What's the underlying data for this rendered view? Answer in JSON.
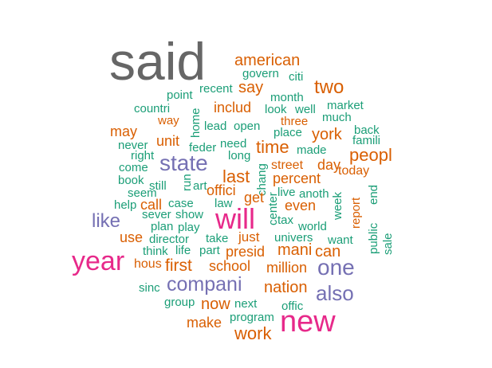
{
  "chart_data": {
    "type": "wordcloud",
    "palette": {
      "dark": "#666666",
      "orange": "#D95F02",
      "teal": "#1B9E77",
      "purple": "#7570B3",
      "magenta": "#E7298A"
    },
    "words": [
      {
        "text": "said",
        "color": "dark"
      },
      {
        "text": "american",
        "color": "orange"
      },
      {
        "text": "govern",
        "color": "teal"
      },
      {
        "text": "citi",
        "color": "teal"
      },
      {
        "text": "say",
        "color": "orange"
      },
      {
        "text": "recent",
        "color": "teal"
      },
      {
        "text": "two",
        "color": "orange"
      },
      {
        "text": "point",
        "color": "teal"
      },
      {
        "text": "month",
        "color": "teal"
      },
      {
        "text": "countri",
        "color": "teal"
      },
      {
        "text": "includ",
        "color": "orange"
      },
      {
        "text": "look",
        "color": "teal"
      },
      {
        "text": "well",
        "color": "teal"
      },
      {
        "text": "market",
        "color": "teal"
      },
      {
        "text": "much",
        "color": "teal"
      },
      {
        "text": "way",
        "color": "orange"
      },
      {
        "text": "home",
        "color": "teal"
      },
      {
        "text": "lead",
        "color": "teal"
      },
      {
        "text": "open",
        "color": "teal"
      },
      {
        "text": "three",
        "color": "orange"
      },
      {
        "text": "place",
        "color": "teal"
      },
      {
        "text": "back",
        "color": "teal"
      },
      {
        "text": "may",
        "color": "orange"
      },
      {
        "text": "york",
        "color": "orange"
      },
      {
        "text": "famili",
        "color": "teal"
      },
      {
        "text": "never",
        "color": "teal"
      },
      {
        "text": "unit",
        "color": "orange"
      },
      {
        "text": "feder",
        "color": "teal"
      },
      {
        "text": "need",
        "color": "teal"
      },
      {
        "text": "time",
        "color": "orange"
      },
      {
        "text": "made",
        "color": "teal"
      },
      {
        "text": "right",
        "color": "teal"
      },
      {
        "text": "long",
        "color": "teal"
      },
      {
        "text": "peopl",
        "color": "orange"
      },
      {
        "text": "state",
        "color": "purple"
      },
      {
        "text": "come",
        "color": "teal"
      },
      {
        "text": "street",
        "color": "orange"
      },
      {
        "text": "day",
        "color": "orange"
      },
      {
        "text": "today",
        "color": "orange"
      },
      {
        "text": "book",
        "color": "teal"
      },
      {
        "text": "last",
        "color": "orange"
      },
      {
        "text": "chang",
        "color": "teal"
      },
      {
        "text": "percent",
        "color": "orange"
      },
      {
        "text": "still",
        "color": "teal"
      },
      {
        "text": "run",
        "color": "teal"
      },
      {
        "text": "art",
        "color": "teal"
      },
      {
        "text": "offici",
        "color": "orange"
      },
      {
        "text": "live",
        "color": "teal"
      },
      {
        "text": "anoth",
        "color": "teal"
      },
      {
        "text": "report",
        "color": "orange"
      },
      {
        "text": "end",
        "color": "teal"
      },
      {
        "text": "seem",
        "color": "teal"
      },
      {
        "text": "get",
        "color": "orange"
      },
      {
        "text": "center",
        "color": "teal"
      },
      {
        "text": "week",
        "color": "teal"
      },
      {
        "text": "help",
        "color": "teal"
      },
      {
        "text": "call",
        "color": "orange"
      },
      {
        "text": "case",
        "color": "teal"
      },
      {
        "text": "law",
        "color": "teal"
      },
      {
        "text": "even",
        "color": "orange"
      },
      {
        "text": "like",
        "color": "purple"
      },
      {
        "text": "sever",
        "color": "teal"
      },
      {
        "text": "show",
        "color": "teal"
      },
      {
        "text": "will",
        "color": "magenta"
      },
      {
        "text": "tax",
        "color": "teal"
      },
      {
        "text": "plan",
        "color": "teal"
      },
      {
        "text": "play",
        "color": "teal"
      },
      {
        "text": "world",
        "color": "teal"
      },
      {
        "text": "public",
        "color": "teal"
      },
      {
        "text": "use",
        "color": "orange"
      },
      {
        "text": "director",
        "color": "teal"
      },
      {
        "text": "take",
        "color": "teal"
      },
      {
        "text": "just",
        "color": "orange"
      },
      {
        "text": "univers",
        "color": "teal"
      },
      {
        "text": "want",
        "color": "teal"
      },
      {
        "text": "sale",
        "color": "teal"
      },
      {
        "text": "think",
        "color": "teal"
      },
      {
        "text": "life",
        "color": "teal"
      },
      {
        "text": "part",
        "color": "teal"
      },
      {
        "text": "presid",
        "color": "orange"
      },
      {
        "text": "mani",
        "color": "orange"
      },
      {
        "text": "can",
        "color": "orange"
      },
      {
        "text": "year",
        "color": "magenta"
      },
      {
        "text": "hous",
        "color": "orange"
      },
      {
        "text": "first",
        "color": "orange"
      },
      {
        "text": "school",
        "color": "orange"
      },
      {
        "text": "million",
        "color": "orange"
      },
      {
        "text": "one",
        "color": "purple"
      },
      {
        "text": "compani",
        "color": "purple"
      },
      {
        "text": "sinc",
        "color": "teal"
      },
      {
        "text": "nation",
        "color": "orange"
      },
      {
        "text": "also",
        "color": "purple"
      },
      {
        "text": "group",
        "color": "teal"
      },
      {
        "text": "now",
        "color": "orange"
      },
      {
        "text": "next",
        "color": "teal"
      },
      {
        "text": "offic",
        "color": "teal"
      },
      {
        "text": "make",
        "color": "orange"
      },
      {
        "text": "program",
        "color": "teal"
      },
      {
        "text": "new",
        "color": "magenta"
      },
      {
        "text": "work",
        "color": "orange"
      }
    ]
  }
}
